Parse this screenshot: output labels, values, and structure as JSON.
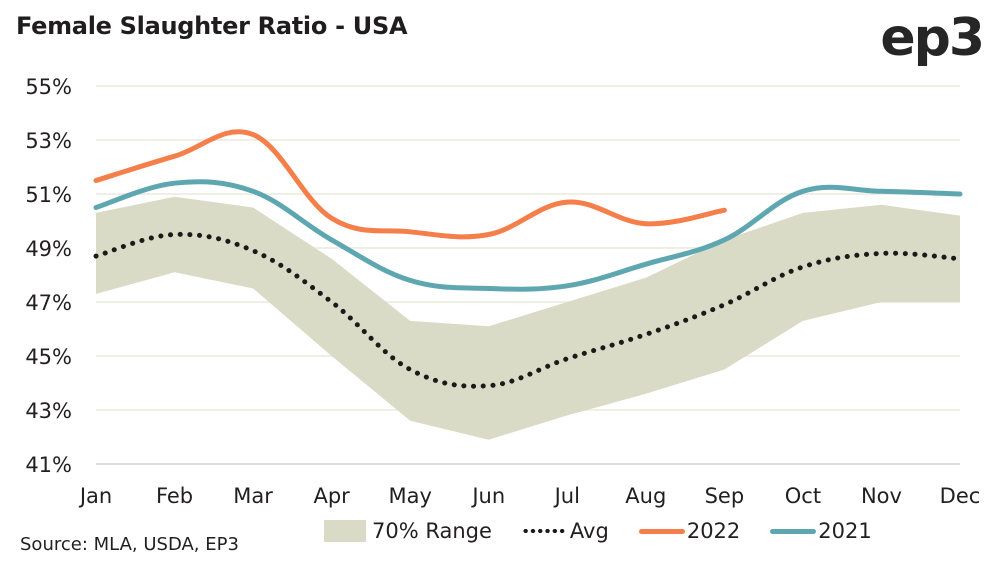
{
  "header": {
    "title": "Female Slaughter Ratio - USA",
    "logo": "ep3"
  },
  "footer": {
    "source": "Source: MLA, USDA, EP3"
  },
  "chart_data": {
    "type": "line",
    "title": "Female Slaughter Ratio - USA",
    "xlabel": "",
    "ylabel": "",
    "categories": [
      "Jan",
      "Feb",
      "Mar",
      "Apr",
      "May",
      "Jun",
      "Jul",
      "Aug",
      "Sep",
      "Oct",
      "Nov",
      "Dec"
    ],
    "ylim": [
      41,
      55
    ],
    "yticks": [
      41,
      43,
      45,
      47,
      49,
      51,
      53,
      55
    ],
    "ytick_labels": [
      "41%",
      "43%",
      "45%",
      "47%",
      "49%",
      "51%",
      "53%",
      "55%"
    ],
    "grid": true,
    "legend_position": "bottom",
    "range": {
      "name": "70% Range",
      "color": "#d9dbc6",
      "upper": [
        50.3,
        50.9,
        50.5,
        48.6,
        46.3,
        46.1,
        47.0,
        47.9,
        49.3,
        50.3,
        50.6,
        50.2
      ],
      "lower": [
        47.3,
        48.1,
        47.5,
        45.0,
        42.6,
        41.9,
        42.8,
        43.6,
        44.5,
        46.3,
        47.0,
        47.0
      ]
    },
    "series": [
      {
        "name": "Avg",
        "color": "#1a1a1a",
        "style": "dotted",
        "values": [
          48.7,
          49.5,
          48.9,
          47.0,
          44.5,
          43.9,
          44.9,
          45.8,
          46.9,
          48.3,
          48.8,
          48.6
        ]
      },
      {
        "name": "2022",
        "color": "#f47f4a",
        "style": "solid",
        "values": [
          51.5,
          52.4,
          53.2,
          50.1,
          49.6,
          49.5,
          50.7,
          49.9,
          50.4,
          null,
          null,
          null
        ]
      },
      {
        "name": "2021",
        "color": "#5fa7b0",
        "style": "solid",
        "values": [
          50.5,
          51.4,
          51.1,
          49.3,
          47.8,
          47.5,
          47.6,
          48.4,
          49.3,
          51.1,
          51.1,
          51.0
        ]
      }
    ]
  }
}
